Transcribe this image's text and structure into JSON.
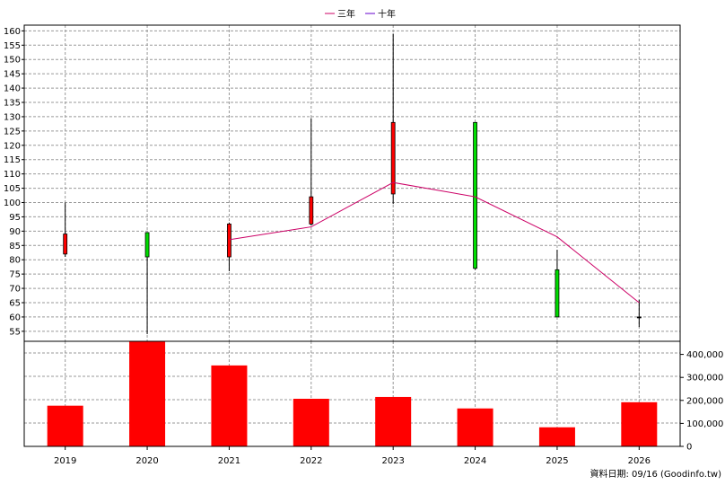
{
  "legend": {
    "items": [
      {
        "label": "三年",
        "color": "#cc0066"
      },
      {
        "label": "十年",
        "color": "#6600cc"
      }
    ]
  },
  "footer": {
    "source": "資料日期: 09/16  (Goodinfo.tw)"
  },
  "chart_data": [
    {
      "type": "candlestick",
      "categories": [
        "2019",
        "2020",
        "2021",
        "2022",
        "2023",
        "2024",
        "2025",
        "2026"
      ],
      "yticks": [
        55,
        60,
        65,
        70,
        75,
        80,
        85,
        90,
        95,
        100,
        105,
        110,
        115,
        120,
        125,
        130,
        135,
        140,
        145,
        150,
        155,
        160
      ],
      "ylim": [
        51.5,
        162
      ],
      "grid": true,
      "candles": [
        {
          "x": "2019",
          "open": 82,
          "close": 89,
          "high": 100,
          "low": 81,
          "color": "#ff0000"
        },
        {
          "x": "2020",
          "open": 89.5,
          "close": 81,
          "high": 89.5,
          "low": 54,
          "color": "#00dd00"
        },
        {
          "x": "2021",
          "open": 81,
          "close": 92.5,
          "high": 93,
          "low": 76,
          "color": "#ff0000"
        },
        {
          "x": "2022",
          "open": 92.5,
          "close": 102,
          "high": 129.5,
          "low": 92,
          "color": "#ff0000"
        },
        {
          "x": "2023",
          "open": 103,
          "close": 128,
          "high": 159,
          "low": 99.5,
          "color": "#ff0000"
        },
        {
          "x": "2024",
          "open": 128,
          "close": 77,
          "high": 128,
          "low": 76.5,
          "color": "#00dd00"
        },
        {
          "x": "2025",
          "open": 76.5,
          "close": 60,
          "high": 83.5,
          "low": 60,
          "color": "#00dd00"
        },
        {
          "x": "2026",
          "open": 60,
          "close": 60,
          "high": 66,
          "low": 56.5,
          "color": "#000000"
        }
      ],
      "series": [
        {
          "name": "三年",
          "color": "#cc0066",
          "x": [
            "2021",
            "2022",
            "2023",
            "2024",
            "2025",
            "2026"
          ],
          "values": [
            87,
            91.5,
            107,
            102,
            88,
            65
          ]
        }
      ]
    },
    {
      "type": "bar",
      "categories": [
        "2019",
        "2020",
        "2021",
        "2022",
        "2023",
        "2024",
        "2025",
        "2026"
      ],
      "values": [
        177000,
        458000,
        352000,
        207000,
        215000,
        165000,
        83000,
        192000
      ],
      "yticks": [
        0,
        100000,
        200000,
        300000,
        400000
      ],
      "ytick_labels": [
        "0",
        "100,000",
        "200,000",
        "300,000",
        "400,000"
      ],
      "ylim": [
        0,
        457000
      ],
      "color": "#ff0000",
      "grid": true
    }
  ]
}
